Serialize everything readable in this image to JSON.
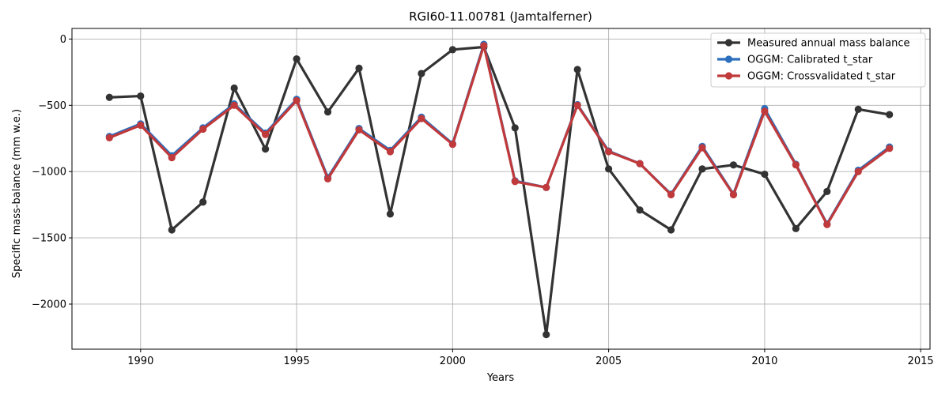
{
  "chart_data": {
    "type": "line",
    "title": "RGI60-11.00781 (Jamtalferner)",
    "xlabel": "Years",
    "ylabel": "Specific mass-balance (mm w.e.)",
    "xlim": [
      1987.8,
      2015.3
    ],
    "ylim": [
      -2340,
      80
    ],
    "xticks": [
      1990,
      1995,
      2000,
      2005,
      2010,
      2015
    ],
    "yticks": [
      0,
      -500,
      -1000,
      -1500,
      -2000
    ],
    "grid": true,
    "legend_position": "top-right",
    "x": [
      1989,
      1990,
      1991,
      1992,
      1993,
      1994,
      1995,
      1996,
      1997,
      1998,
      1999,
      2000,
      2001,
      2002,
      2003,
      2004,
      2005,
      2006,
      2007,
      2008,
      2009,
      2010,
      2011,
      2012,
      2013,
      2014
    ],
    "series": [
      {
        "name": "Measured annual mass balance",
        "color": "#333333",
        "values": [
          -440,
          -430,
          -1440,
          -1230,
          -370,
          -830,
          -150,
          -550,
          -220,
          -1320,
          -260,
          -80,
          -60,
          -670,
          -2230,
          -230,
          -980,
          -1290,
          -1440,
          -980,
          -950,
          -1020,
          -1430,
          -1150,
          -530,
          -570
        ]
      },
      {
        "name": "OGGM: Calibrated t_star",
        "color": "#2b6fbd",
        "values": [
          -735,
          -640,
          -880,
          -670,
          -490,
          -710,
          -455,
          -1045,
          -675,
          -840,
          -590,
          -790,
          -40,
          -1070,
          -1120,
          -495,
          -845,
          -940,
          -1170,
          -810,
          -1170,
          -525,
          -945,
          -1395,
          -990,
          -815
        ]
      },
      {
        "name": "OGGM: Crossvalidated t_star",
        "color": "#c0393b",
        "values": [
          -745,
          -650,
          -895,
          -680,
          -500,
          -720,
          -465,
          -1055,
          -685,
          -850,
          -600,
          -795,
          -50,
          -1075,
          -1120,
          -500,
          -850,
          -940,
          -1175,
          -820,
          -1175,
          -545,
          -950,
          -1400,
          -1000,
          -825
        ]
      }
    ]
  }
}
